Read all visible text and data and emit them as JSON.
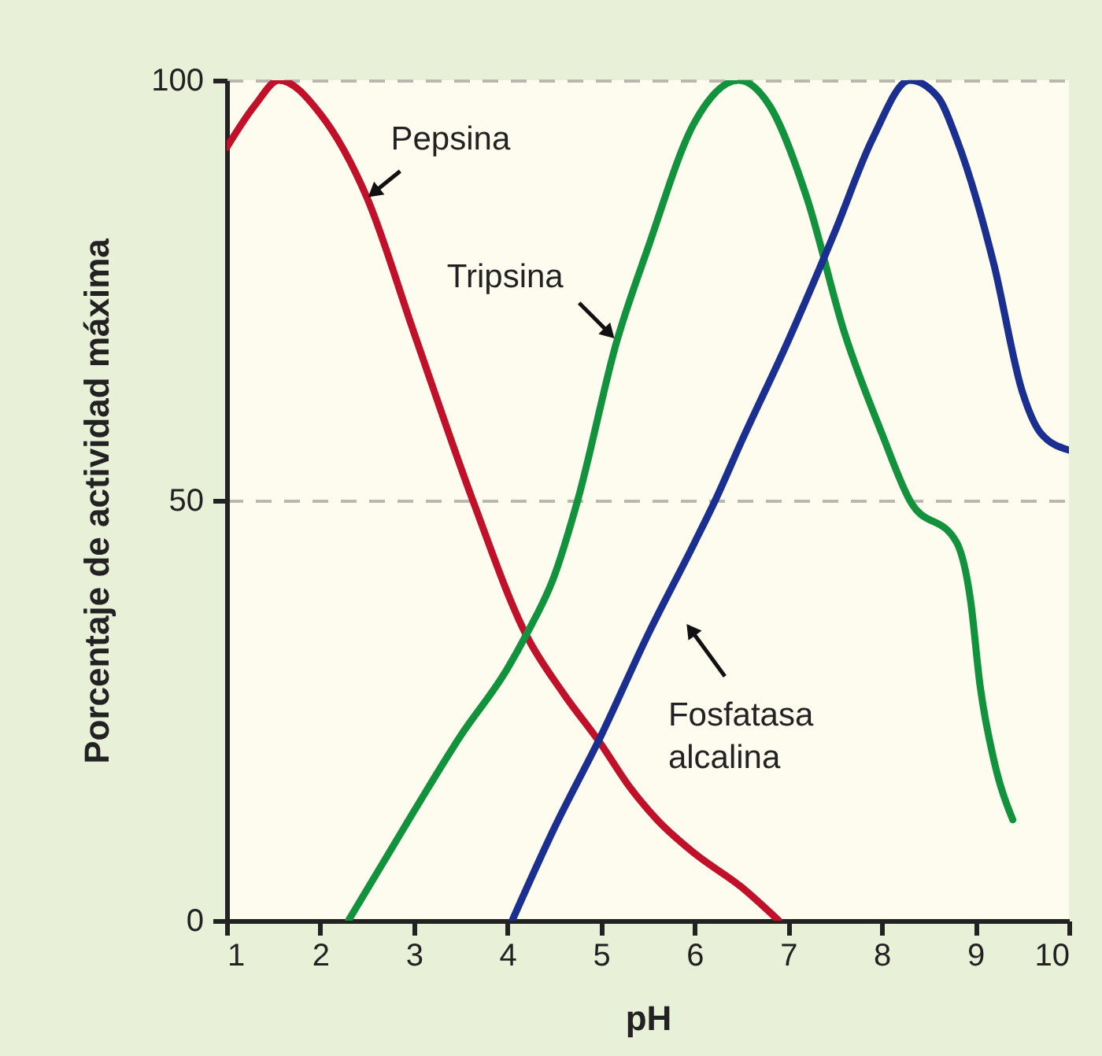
{
  "chart_data": {
    "type": "line",
    "xlabel": "pH",
    "ylabel": "Porcentaje de actividad máxima",
    "xlim": [
      1,
      10
    ],
    "ylim": [
      0,
      100
    ],
    "xticks": [
      1,
      2,
      3,
      4,
      5,
      6,
      7,
      8,
      9,
      10
    ],
    "yticks": [
      0,
      50,
      100
    ],
    "grid": "y",
    "legend": false,
    "series": [
      {
        "color": "#c0102a",
        "x": [
          1,
          1.3,
          1.56,
          2,
          2.5,
          3,
          3.63,
          4.2,
          4.6,
          5,
          5.3,
          5.6,
          6,
          6.5,
          6.9
        ],
        "values": [
          92,
          97,
          100,
          96,
          86,
          70,
          50,
          34,
          27,
          21,
          16,
          12,
          8,
          4,
          0
        ]
      },
      {
        "color": "#13923e",
        "x": [
          2.3,
          3,
          3.5,
          4,
          4.2,
          4.5,
          4.75,
          5.17,
          5.5,
          6,
          6.47,
          6.8,
          7.2,
          7.6,
          8,
          8.3,
          8.8,
          8.95,
          9.05,
          9.2,
          9.4
        ],
        "values": [
          0,
          13,
          22,
          30,
          34,
          41,
          50,
          69,
          80,
          95,
          100,
          97,
          86,
          70,
          58,
          50,
          45,
          38,
          28,
          19,
          12
        ]
      },
      {
        "color": "#1a2f8f",
        "x": [
          4.05,
          4.5,
          5,
          5.5,
          6,
          6.22,
          6.5,
          7,
          7.5,
          7.9,
          8.3,
          8.6,
          8.8,
          9.2,
          9.5,
          9.7,
          10
        ],
        "values": [
          0,
          11,
          22,
          34,
          45,
          50,
          57,
          69,
          82,
          93,
          100,
          98,
          93,
          78,
          63,
          58,
          56
        ]
      }
    ],
    "annotations": [
      {
        "text": "Pepsina",
        "x": 2.5,
        "y": 86
      },
      {
        "text": "Tripsina",
        "x": 5.17,
        "y": 69
      },
      {
        "text": "Fosfatasa alcalina",
        "x": 5.6,
        "y": 36
      }
    ]
  }
}
